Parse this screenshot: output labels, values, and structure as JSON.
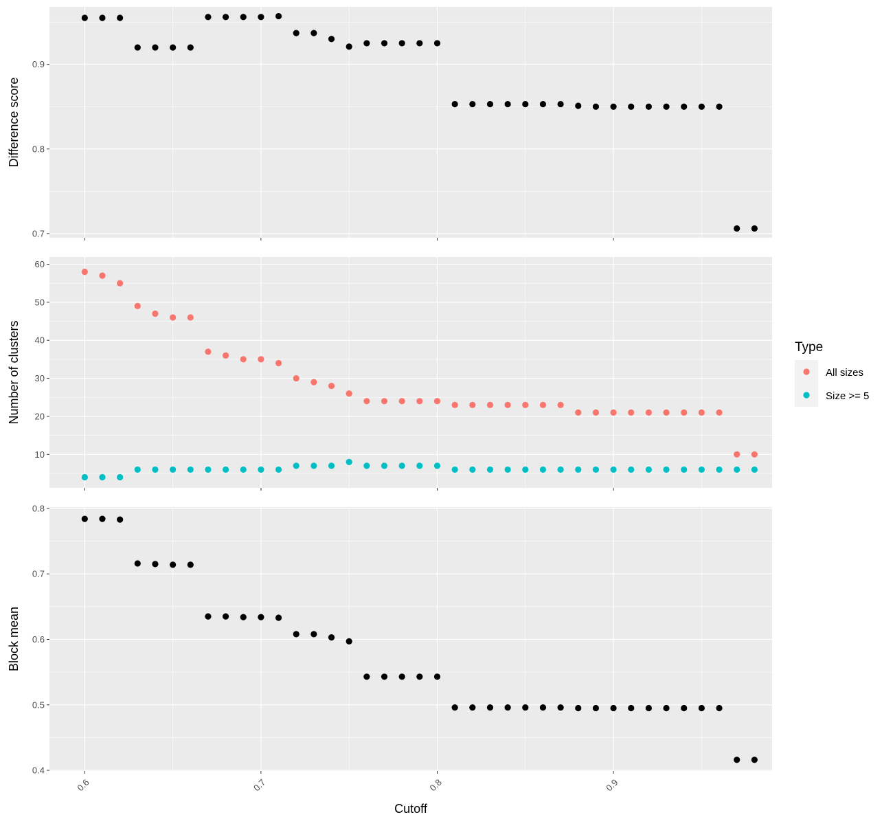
{
  "chart_data": [
    {
      "type": "scatter",
      "ylabel": "Difference score",
      "xlim": [
        0.58,
        0.99
      ],
      "ylim": [
        0.695,
        0.968
      ],
      "y_ticks": [
        0.7,
        0.8,
        0.9
      ],
      "y_tick_labels": [
        "0.7",
        "0.8",
        "0.9"
      ],
      "x_ticks": [
        0.6,
        0.7,
        0.8,
        0.9
      ],
      "series": [
        {
          "color": "#000000",
          "x": [
            0.6,
            0.61,
            0.62,
            0.63,
            0.64,
            0.65,
            0.66,
            0.67,
            0.68,
            0.69,
            0.7,
            0.71,
            0.72,
            0.73,
            0.74,
            0.75,
            0.76,
            0.77,
            0.78,
            0.79,
            0.8,
            0.81,
            0.82,
            0.83,
            0.84,
            0.85,
            0.86,
            0.87,
            0.88,
            0.89,
            0.9,
            0.91,
            0.92,
            0.93,
            0.94,
            0.95,
            0.96,
            0.97,
            0.98
          ],
          "y": [
            0.955,
            0.955,
            0.955,
            0.92,
            0.92,
            0.92,
            0.92,
            0.956,
            0.956,
            0.956,
            0.956,
            0.957,
            0.937,
            0.937,
            0.93,
            0.921,
            0.925,
            0.925,
            0.925,
            0.925,
            0.925,
            0.853,
            0.853,
            0.853,
            0.853,
            0.853,
            0.853,
            0.853,
            0.851,
            0.85,
            0.85,
            0.85,
            0.85,
            0.85,
            0.85,
            0.85,
            0.85,
            0.706,
            0.706
          ]
        }
      ]
    },
    {
      "type": "scatter",
      "ylabel": "Number of clusters",
      "xlim": [
        0.58,
        0.99
      ],
      "ylim": [
        1.2,
        61.9
      ],
      "y_ticks": [
        10,
        20,
        30,
        40,
        50,
        60
      ],
      "y_tick_labels": [
        "10",
        "20",
        "30",
        "40",
        "50",
        "60"
      ],
      "x_ticks": [
        0.6,
        0.7,
        0.8,
        0.9
      ],
      "legend": {
        "title": "Type",
        "position": "right",
        "entries": [
          {
            "label": "All sizes",
            "color": "#F8766D"
          },
          {
            "label": "Size >= 5",
            "color": "#00BFC4"
          }
        ]
      },
      "series": [
        {
          "name": "All sizes",
          "color": "#F8766D",
          "x": [
            0.6,
            0.61,
            0.62,
            0.63,
            0.64,
            0.65,
            0.66,
            0.67,
            0.68,
            0.69,
            0.7,
            0.71,
            0.72,
            0.73,
            0.74,
            0.75,
            0.76,
            0.77,
            0.78,
            0.79,
            0.8,
            0.81,
            0.82,
            0.83,
            0.84,
            0.85,
            0.86,
            0.87,
            0.88,
            0.89,
            0.9,
            0.91,
            0.92,
            0.93,
            0.94,
            0.95,
            0.96,
            0.97,
            0.98
          ],
          "y": [
            58,
            57,
            55,
            49,
            47,
            46,
            46,
            37,
            36,
            35,
            35,
            34,
            30,
            29,
            28,
            26,
            24,
            24,
            24,
            24,
            24,
            23,
            23,
            23,
            23,
            23,
            23,
            23,
            21,
            21,
            21,
            21,
            21,
            21,
            21,
            21,
            21,
            10,
            10
          ]
        },
        {
          "name": "Size >= 5",
          "color": "#00BFC4",
          "x": [
            0.6,
            0.61,
            0.62,
            0.63,
            0.64,
            0.65,
            0.66,
            0.67,
            0.68,
            0.69,
            0.7,
            0.71,
            0.72,
            0.73,
            0.74,
            0.75,
            0.76,
            0.77,
            0.78,
            0.79,
            0.8,
            0.81,
            0.82,
            0.83,
            0.84,
            0.85,
            0.86,
            0.87,
            0.88,
            0.89,
            0.9,
            0.91,
            0.92,
            0.93,
            0.94,
            0.95,
            0.96,
            0.97,
            0.98
          ],
          "y": [
            4,
            4,
            4,
            6,
            6,
            6,
            6,
            6,
            6,
            6,
            6,
            6,
            7,
            7,
            7,
            8,
            7,
            7,
            7,
            7,
            7,
            6,
            6,
            6,
            6,
            6,
            6,
            6,
            6,
            6,
            6,
            6,
            6,
            6,
            6,
            6,
            6,
            6,
            6
          ]
        }
      ]
    },
    {
      "type": "scatter",
      "ylabel": "Block mean",
      "xlabel": "Cutoff",
      "xlim": [
        0.58,
        0.99
      ],
      "ylim": [
        0.399,
        0.802
      ],
      "y_ticks": [
        0.4,
        0.5,
        0.6,
        0.7,
        0.8
      ],
      "y_tick_labels": [
        "0.4",
        "0.5",
        "0.6",
        "0.7",
        "0.8"
      ],
      "x_ticks": [
        0.6,
        0.7,
        0.8,
        0.9
      ],
      "x_tick_labels": [
        "0.6",
        "0.7",
        "0.8",
        "0.9"
      ],
      "series": [
        {
          "color": "#000000",
          "x": [
            0.6,
            0.61,
            0.62,
            0.63,
            0.64,
            0.65,
            0.66,
            0.67,
            0.68,
            0.69,
            0.7,
            0.71,
            0.72,
            0.73,
            0.74,
            0.75,
            0.76,
            0.77,
            0.78,
            0.79,
            0.8,
            0.81,
            0.82,
            0.83,
            0.84,
            0.85,
            0.86,
            0.87,
            0.88,
            0.89,
            0.9,
            0.91,
            0.92,
            0.93,
            0.94,
            0.95,
            0.96,
            0.97,
            0.98
          ],
          "y": [
            0.784,
            0.784,
            0.783,
            0.716,
            0.715,
            0.714,
            0.714,
            0.635,
            0.635,
            0.634,
            0.634,
            0.633,
            0.608,
            0.608,
            0.603,
            0.597,
            0.543,
            0.543,
            0.543,
            0.543,
            0.543,
            0.496,
            0.496,
            0.496,
            0.496,
            0.496,
            0.496,
            0.496,
            0.495,
            0.495,
            0.495,
            0.495,
            0.495,
            0.495,
            0.495,
            0.495,
            0.495,
            0.416,
            0.416
          ]
        }
      ]
    }
  ]
}
